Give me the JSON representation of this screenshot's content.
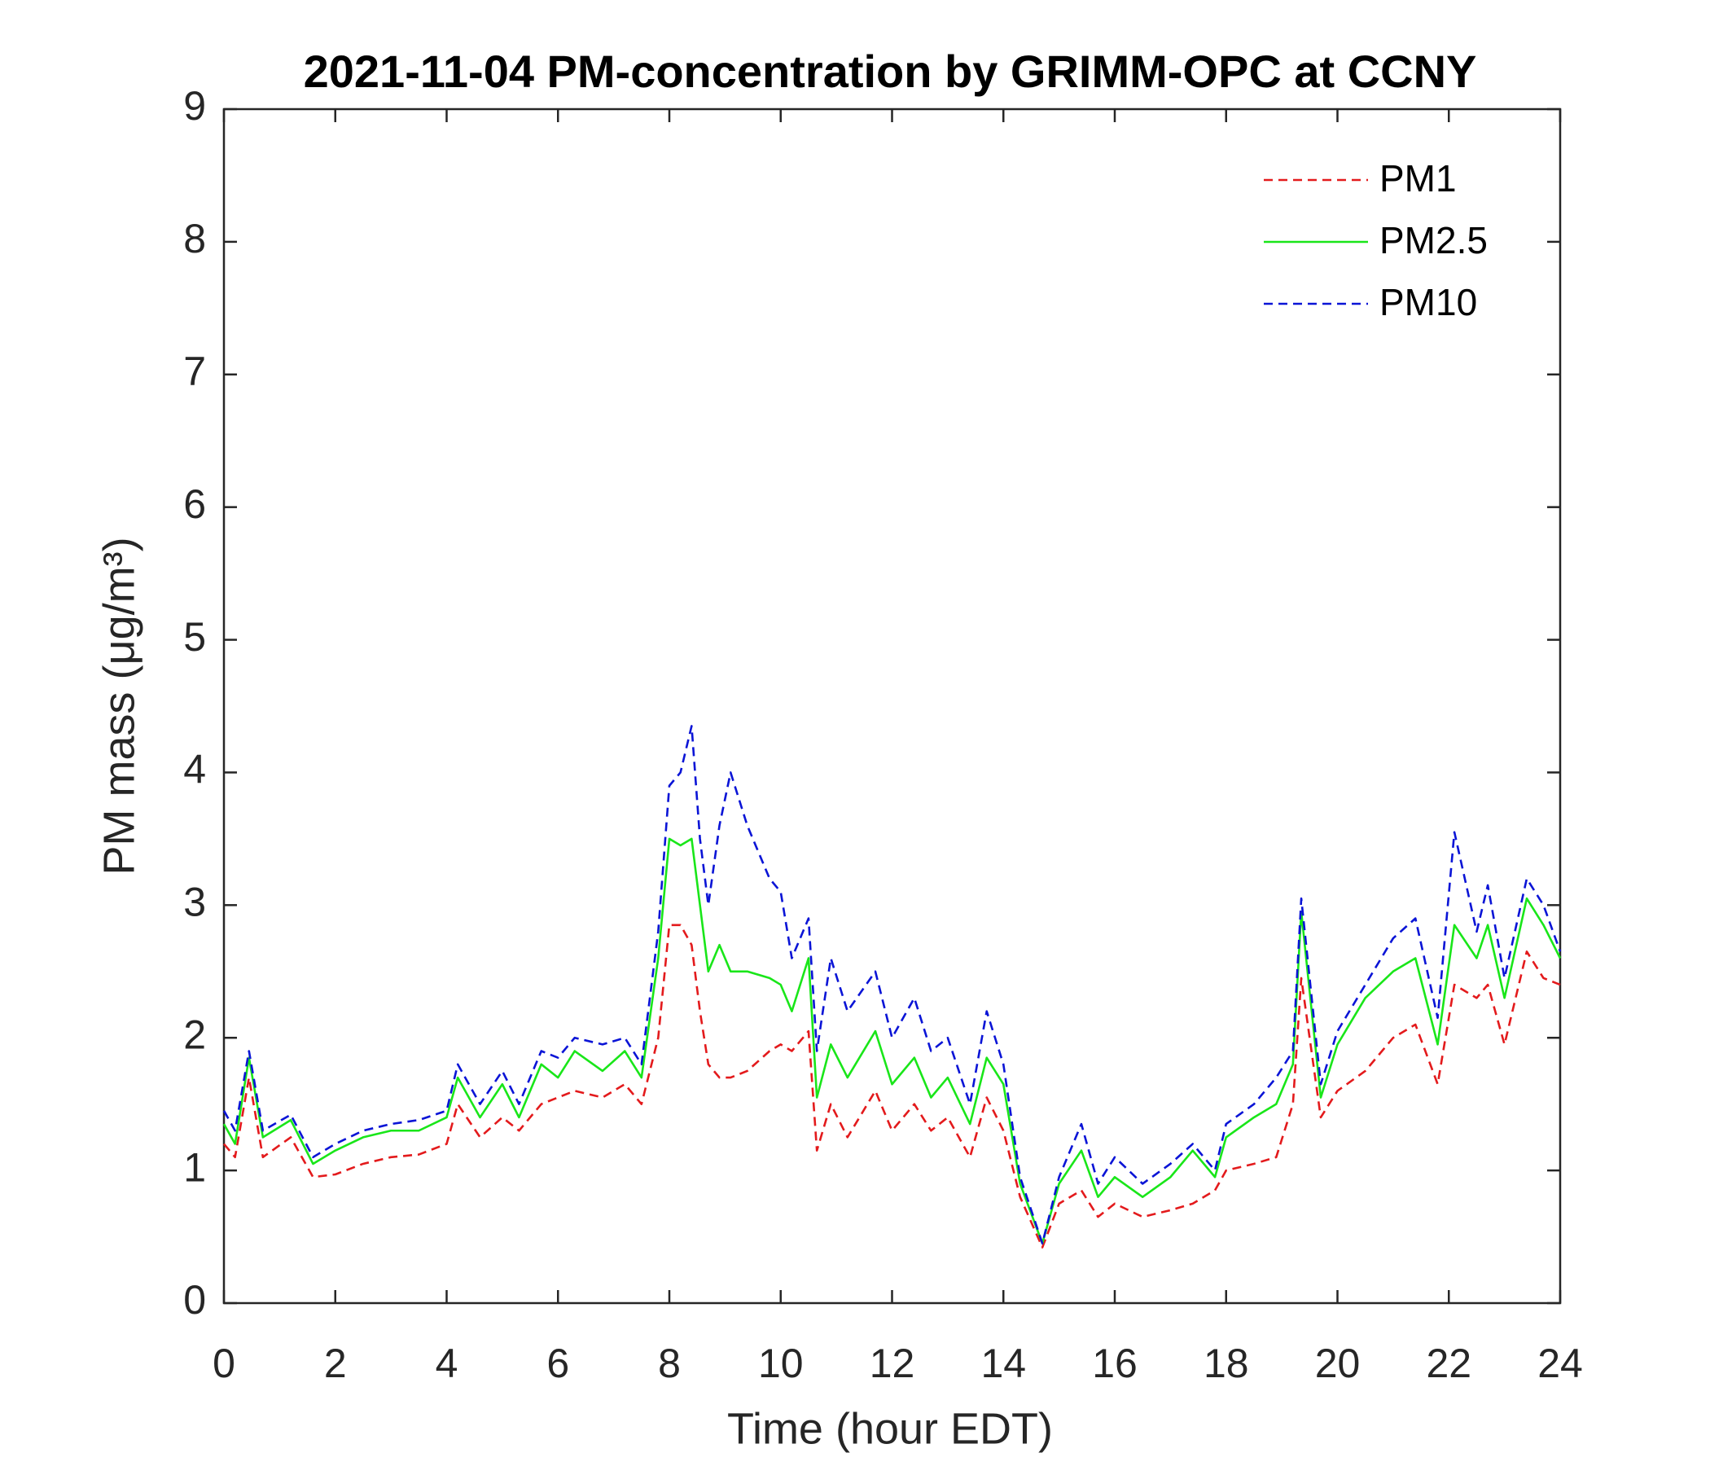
{
  "chart_data": {
    "type": "line",
    "title": "2021-11-04 PM-concentration by GRIMM-OPC at CCNY",
    "x_label": "Time (hour EDT)",
    "y_label": "PM mass (μg/m³)",
    "x": [
      0,
      0.2,
      0.45,
      0.7,
      1.2,
      1.6,
      2.0,
      2.5,
      3.0,
      3.5,
      4.0,
      4.2,
      4.6,
      5.0,
      5.3,
      5.7,
      6.0,
      6.3,
      6.8,
      7.2,
      7.5,
      7.8,
      8.0,
      8.2,
      8.4,
      8.55,
      8.7,
      8.9,
      9.1,
      9.4,
      9.8,
      10.0,
      10.2,
      10.5,
      10.65,
      10.9,
      11.2,
      11.7,
      12.0,
      12.4,
      12.7,
      13.0,
      13.4,
      13.7,
      14.0,
      14.3,
      14.7,
      15.0,
      15.4,
      15.7,
      16.0,
      16.5,
      17.0,
      17.4,
      17.8,
      18.0,
      18.5,
      18.9,
      19.2,
      19.35,
      19.7,
      20.0,
      20.5,
      21.0,
      21.4,
      21.8,
      22.1,
      22.5,
      22.7,
      23.0,
      23.4,
      23.7,
      24.0
    ],
    "series": [
      {
        "name": "PM1",
        "color": "#e31a1c",
        "dashed": true,
        "values": [
          1.2,
          1.1,
          1.7,
          1.1,
          1.25,
          0.95,
          0.97,
          1.05,
          1.1,
          1.12,
          1.2,
          1.5,
          1.25,
          1.4,
          1.3,
          1.5,
          1.55,
          1.6,
          1.55,
          1.65,
          1.5,
          2.0,
          2.85,
          2.85,
          2.7,
          2.2,
          1.8,
          1.7,
          1.7,
          1.75,
          1.9,
          1.95,
          1.9,
          2.05,
          1.15,
          1.5,
          1.25,
          1.6,
          1.3,
          1.5,
          1.3,
          1.4,
          1.1,
          1.55,
          1.3,
          0.8,
          0.42,
          0.75,
          0.85,
          0.65,
          0.75,
          0.65,
          0.7,
          0.75,
          0.85,
          1.0,
          1.05,
          1.1,
          1.5,
          2.45,
          1.4,
          1.6,
          1.75,
          2.0,
          2.1,
          1.65,
          2.4,
          2.3,
          2.4,
          1.95,
          2.65,
          2.45,
          2.4
        ]
      },
      {
        "name": "PM2.5",
        "color": "#19e619",
        "dashed": false,
        "values": [
          1.35,
          1.2,
          1.85,
          1.25,
          1.38,
          1.05,
          1.15,
          1.25,
          1.3,
          1.3,
          1.4,
          1.7,
          1.4,
          1.65,
          1.4,
          1.8,
          1.7,
          1.9,
          1.75,
          1.9,
          1.7,
          2.6,
          3.5,
          3.45,
          3.5,
          3.0,
          2.5,
          2.7,
          2.5,
          2.5,
          2.45,
          2.4,
          2.2,
          2.6,
          1.55,
          1.95,
          1.7,
          2.05,
          1.65,
          1.85,
          1.55,
          1.7,
          1.35,
          1.85,
          1.65,
          0.9,
          0.45,
          0.9,
          1.15,
          0.8,
          0.95,
          0.8,
          0.95,
          1.15,
          0.95,
          1.25,
          1.4,
          1.5,
          1.8,
          2.95,
          1.55,
          1.95,
          2.3,
          2.5,
          2.6,
          1.95,
          2.85,
          2.6,
          2.85,
          2.3,
          3.05,
          2.85,
          2.6
        ]
      },
      {
        "name": "PM10",
        "color": "#0a14d6",
        "dashed": true,
        "values": [
          1.45,
          1.3,
          1.9,
          1.3,
          1.42,
          1.1,
          1.2,
          1.3,
          1.35,
          1.38,
          1.45,
          1.8,
          1.5,
          1.75,
          1.5,
          1.9,
          1.85,
          2.0,
          1.95,
          2.0,
          1.8,
          2.8,
          3.9,
          4.0,
          4.35,
          3.5,
          3.0,
          3.6,
          4.0,
          3.6,
          3.2,
          3.1,
          2.6,
          2.9,
          1.9,
          2.6,
          2.2,
          2.5,
          2.0,
          2.3,
          1.9,
          2.0,
          1.5,
          2.2,
          1.8,
          0.95,
          0.45,
          0.95,
          1.35,
          0.9,
          1.1,
          0.9,
          1.05,
          1.2,
          1.0,
          1.35,
          1.5,
          1.7,
          1.9,
          3.05,
          1.65,
          2.05,
          2.4,
          2.75,
          2.9,
          2.15,
          3.55,
          2.8,
          3.15,
          2.45,
          3.2,
          3.0,
          2.65
        ]
      }
    ],
    "xlim": [
      0,
      24
    ],
    "xticks": [
      0,
      2,
      4,
      6,
      8,
      10,
      12,
      14,
      16,
      18,
      20,
      22,
      24
    ],
    "ylim": [
      0,
      9
    ],
    "yticks": [
      0,
      1,
      2,
      3,
      4,
      5,
      6,
      7,
      8,
      9
    ],
    "grid": false,
    "legend": "upper right"
  }
}
